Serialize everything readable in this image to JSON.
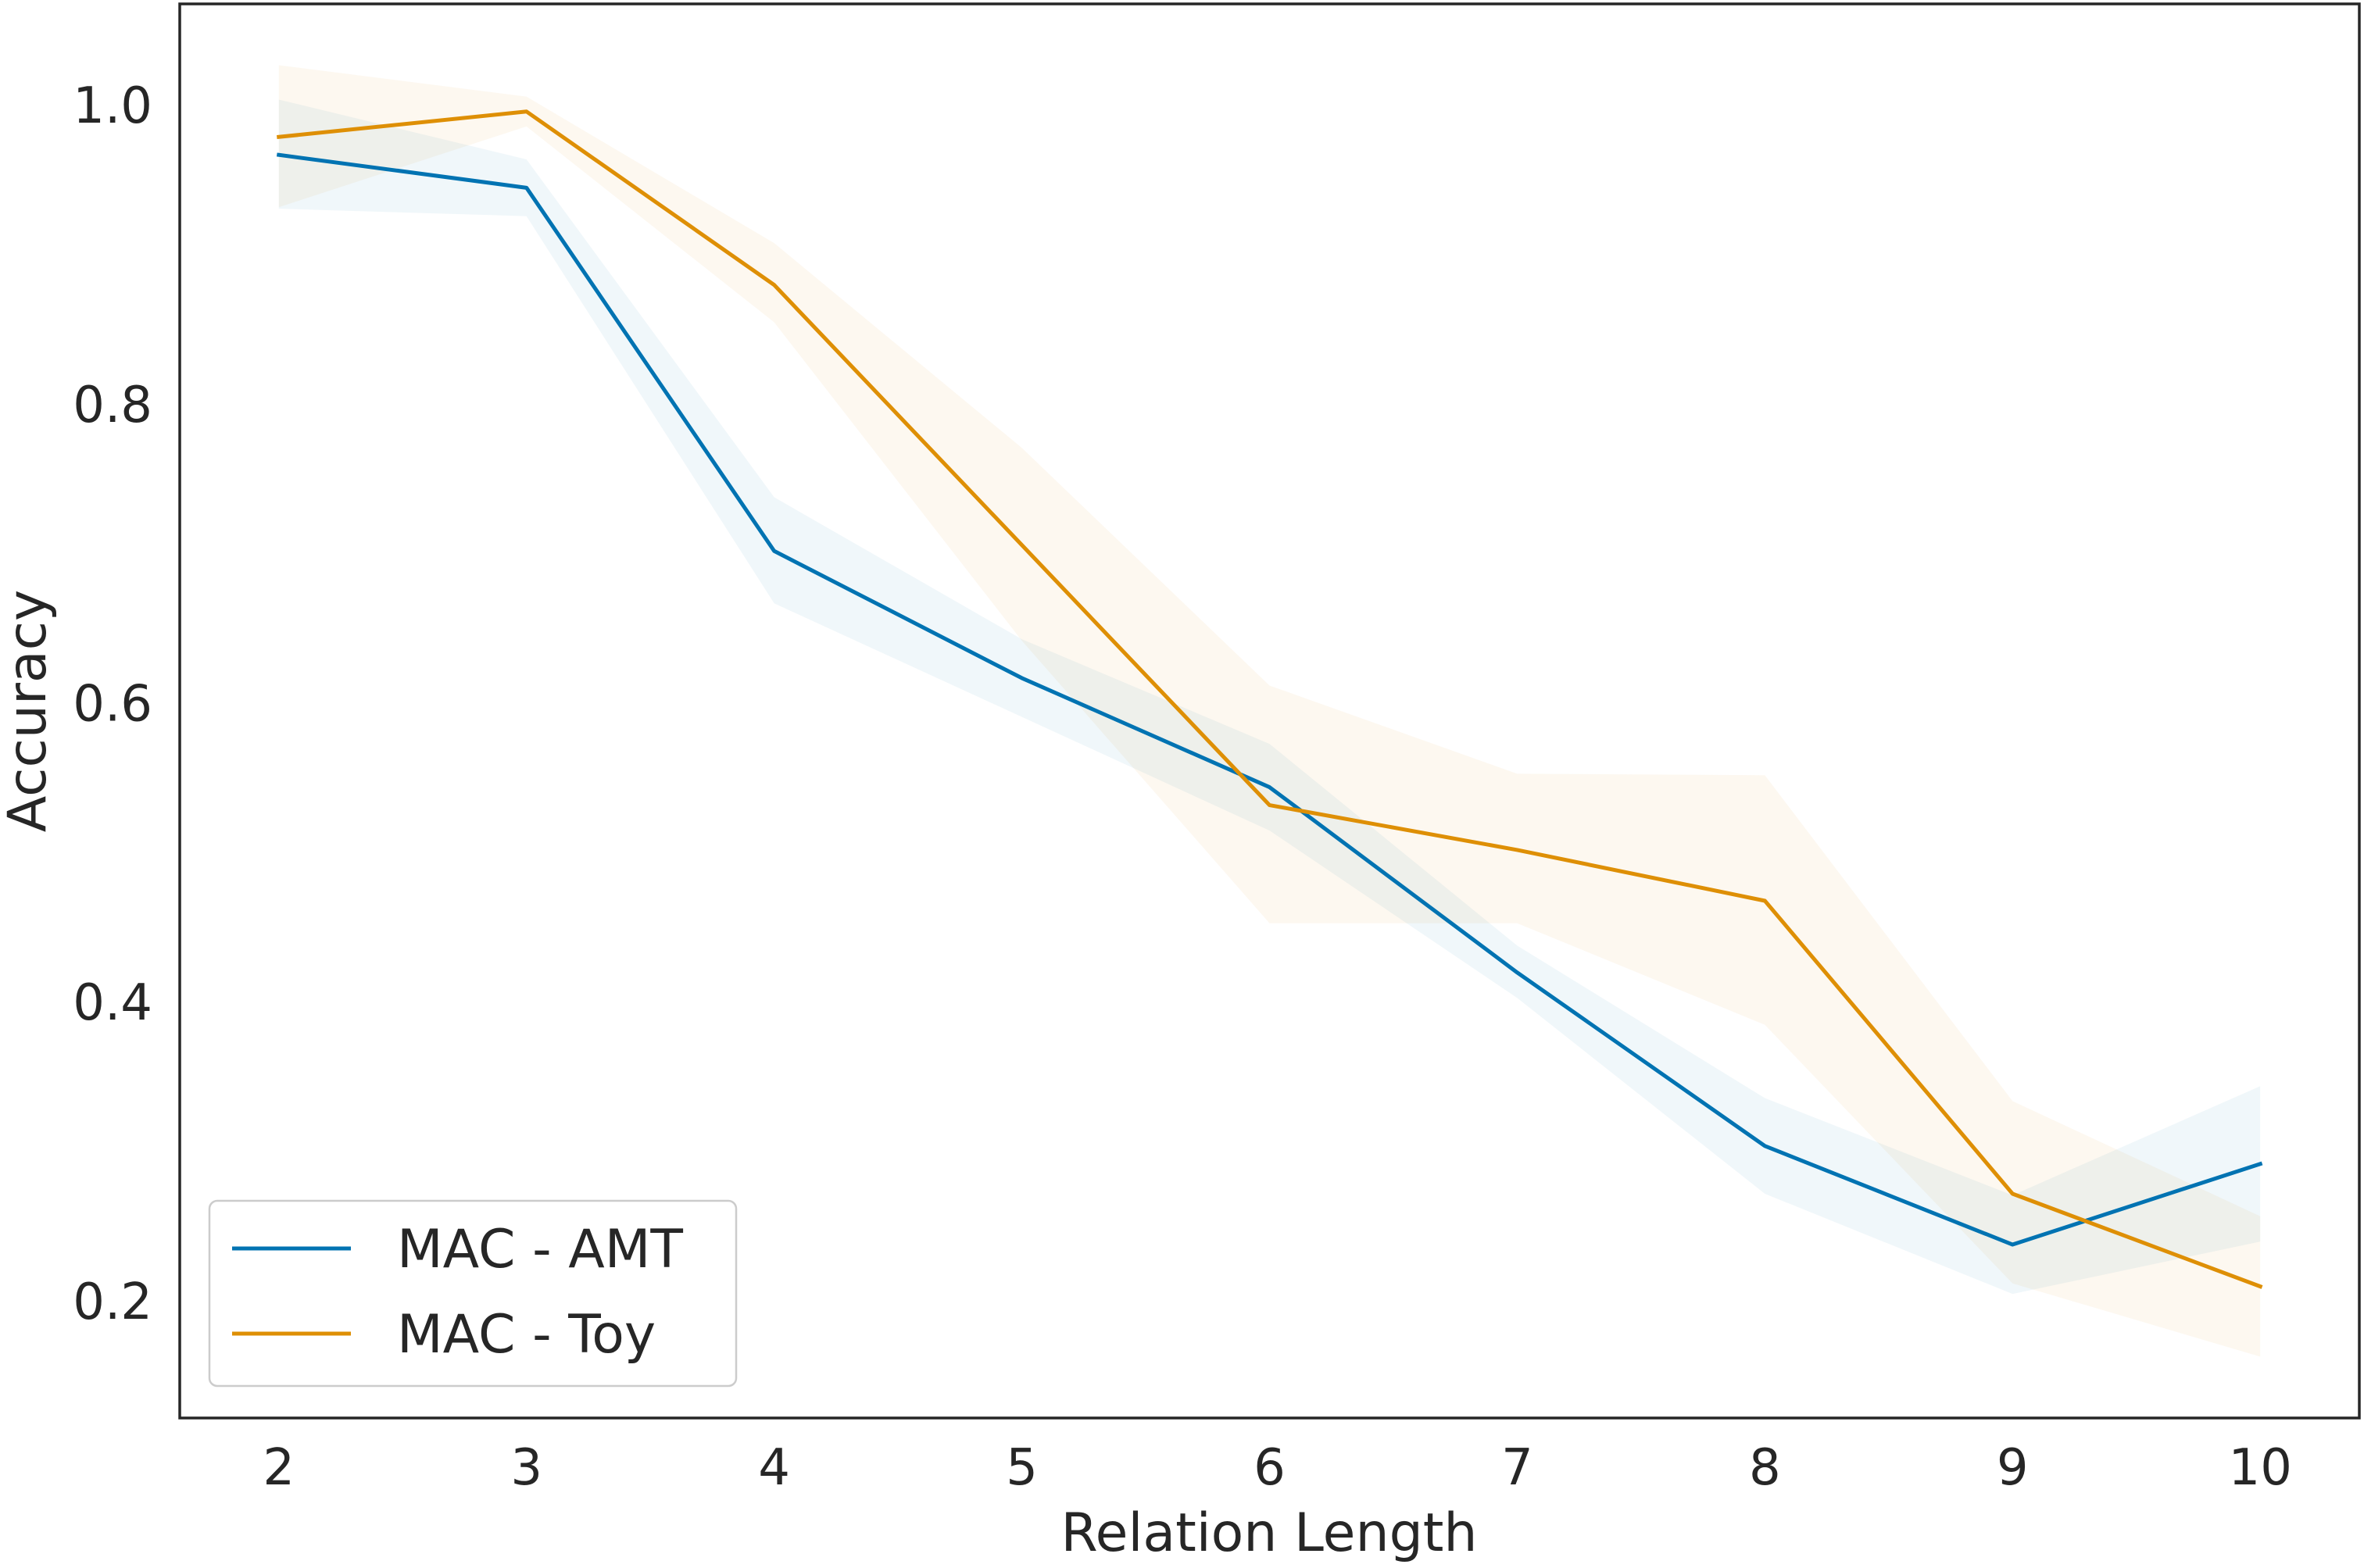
{
  "chart_data": {
    "type": "line",
    "xlabel": "Relation Length",
    "ylabel": "Accuracy",
    "x": [
      2,
      3,
      4,
      5,
      6,
      7,
      8,
      9,
      10
    ],
    "xlim": [
      1.6,
      10.4
    ],
    "ylim": [
      0.122,
      1.068
    ],
    "xticks": [
      2,
      3,
      4,
      5,
      6,
      7,
      8,
      9,
      10
    ],
    "yticks": [
      0.2,
      0.4,
      0.6,
      0.8,
      1.0
    ],
    "ytick_labels": [
      "0.2",
      "0.4",
      "0.6",
      "0.8",
      "1.0"
    ],
    "grid": false,
    "legend": {
      "position": "lower-left"
    },
    "series": [
      {
        "name": "MAC - AMT",
        "color": "#0173b2",
        "values": [
          0.967,
          0.945,
          0.702,
          0.617,
          0.544,
          0.42,
          0.304,
          0.238,
          0.292
        ],
        "ci_low": [
          0.931,
          0.926,
          0.667,
          0.591,
          0.515,
          0.403,
          0.272,
          0.205,
          0.24
        ],
        "ci_high": [
          1.004,
          0.964,
          0.738,
          0.643,
          0.573,
          0.438,
          0.336,
          0.271,
          0.344
        ]
      },
      {
        "name": "MAC - Toy",
        "color": "#de8f05",
        "values": [
          0.979,
          0.996,
          0.88,
          0.706,
          0.532,
          0.502,
          0.468,
          0.272,
          0.21
        ],
        "ci_low": [
          0.932,
          0.986,
          0.855,
          0.642,
          0.453,
          0.453,
          0.385,
          0.212,
          0.163
        ],
        "ci_high": [
          1.027,
          1.006,
          0.908,
          0.771,
          0.612,
          0.553,
          0.552,
          0.334,
          0.257
        ]
      }
    ]
  }
}
